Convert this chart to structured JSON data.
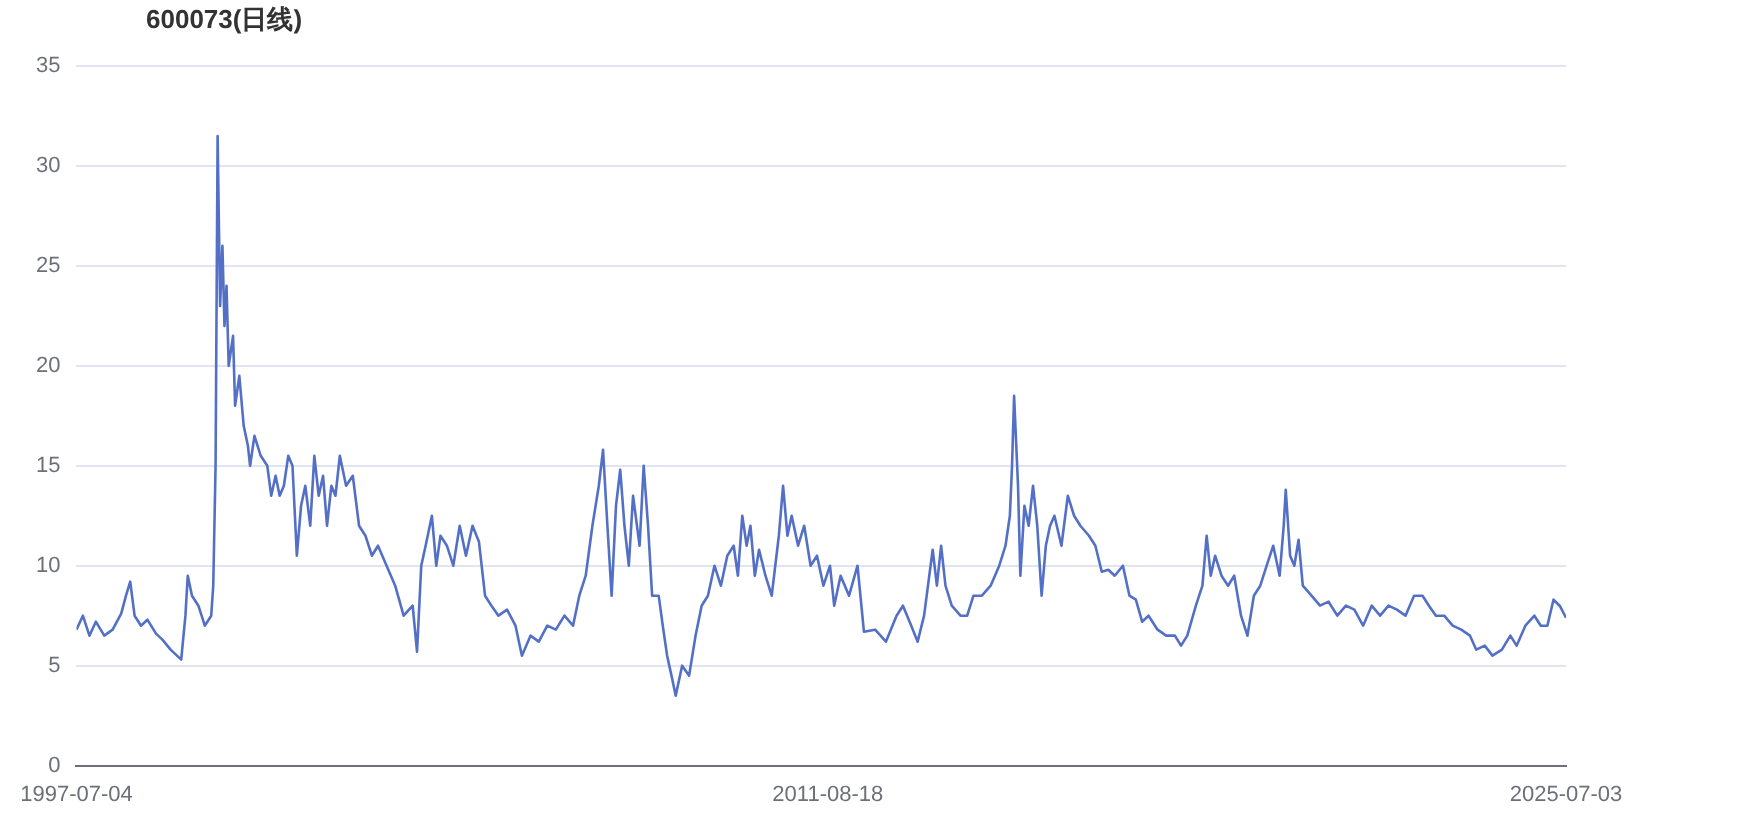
{
  "chart_data": {
    "type": "line",
    "title": "600073(日线)",
    "xlim": [
      "1997-07-04",
      "2025-07-03"
    ],
    "xticks": [
      "1997-07-04",
      "2011-08-18",
      "2025-07-03"
    ],
    "ylim": [
      0,
      35
    ],
    "yticks": [
      0,
      5,
      10,
      15,
      20,
      25,
      30,
      35
    ],
    "grid": "y",
    "legend": false,
    "marker": "none",
    "line_style": "solid",
    "series": [
      {
        "color": "#5470c6",
        "x": [
          "1997-07-04",
          "1997-08-17",
          "1997-10-01",
          "1997-11-14",
          "1998-01-11",
          "1998-03-09",
          "1998-05-07",
          "1998-06-09",
          "1998-07-08",
          "1998-08-07",
          "1998-09-20",
          "1998-11-03",
          "1999-01-01",
          "1999-02-14",
          "1999-04-11",
          "1999-05-25",
          "1999-06-23",
          "1999-07-22",
          "1999-08-07",
          "1999-09-05",
          "1999-10-19",
          "1999-12-02",
          "2000-01-15",
          "2000-01-29",
          "2000-02-14",
          "2000-02-28",
          "2000-03-16",
          "2000-04-01",
          "2000-04-15",
          "2000-04-29",
          "2000-05-14",
          "2000-06-13",
          "2000-06-27",
          "2000-07-26",
          "2000-08-25",
          "2000-09-23",
          "2000-10-08",
          "2000-11-07",
          "2000-12-20",
          "2001-02-03",
          "2001-03-02",
          "2001-04-01",
          "2001-04-29",
          "2001-05-28",
          "2001-06-27",
          "2001-07-26",
          "2001-08-25",
          "2001-09-23",
          "2001-10-22",
          "2001-11-25",
          "2001-12-23",
          "2002-01-22",
          "2002-02-21",
          "2002-03-20",
          "2002-04-19",
          "2002-05-17",
          "2002-06-16",
          "2002-07-29",
          "2002-09-13",
          "2002-10-26",
          "2002-12-09",
          "2003-01-22",
          "2003-03-05",
          "2003-05-03",
          "2003-07-01",
          "2003-08-28",
          "2003-10-29",
          "2003-11-28",
          "2003-12-27",
          "2004-01-26",
          "2004-03-09",
          "2004-04-08",
          "2004-05-07",
          "2004-06-20",
          "2004-08-03",
          "2004-09-16",
          "2004-10-29",
          "2004-12-13",
          "2005-01-26",
          "2005-03-09",
          "2005-04-22",
          "2005-06-09",
          "2005-08-07",
          "2005-10-04",
          "2005-11-17",
          "2006-01-15",
          "2006-03-13",
          "2006-05-10",
          "2006-07-08",
          "2006-09-05",
          "2006-11-03",
          "2006-12-16",
          "2007-01-29",
          "2007-03-16",
          "2007-04-29",
          "2007-05-28",
          "2007-06-27",
          "2007-07-26",
          "2007-08-25",
          "2007-09-23",
          "2007-10-22",
          "2007-11-21",
          "2007-12-20",
          "2008-02-03",
          "2008-03-02",
          "2008-04-01",
          "2008-04-29",
          "2008-06-13",
          "2008-07-11",
          "2008-08-10",
          "2008-09-09",
          "2008-10-08",
          "2008-11-21",
          "2009-01-08",
          "2009-02-21",
          "2009-04-04",
          "2009-05-17",
          "2009-07-01",
          "2009-08-14",
          "2009-09-27",
          "2009-11-10",
          "2009-12-09",
          "2010-01-08",
          "2010-02-07",
          "2010-03-05",
          "2010-04-04",
          "2010-05-03",
          "2010-06-16",
          "2010-07-29",
          "2010-09-16",
          "2010-10-15",
          "2010-11-14",
          "2010-12-13",
          "2011-01-26",
          "2011-03-09",
          "2011-04-22",
          "2011-06-05",
          "2011-07-19",
          "2011-09-02",
          "2011-10-01",
          "2011-11-14",
          "2012-01-11",
          "2012-03-09",
          "2012-04-22",
          "2012-07-08",
          "2012-09-20",
          "2012-12-02",
          "2013-01-15",
          "2013-03-13",
          "2013-04-26",
          "2013-06-09",
          "2013-08-07",
          "2013-09-05",
          "2013-10-04",
          "2013-11-03",
          "2013-12-16",
          "2014-02-14",
          "2014-04-01",
          "2014-05-14",
          "2014-07-11",
          "2014-09-09",
          "2014-11-07",
          "2014-12-20",
          "2015-01-19",
          "2015-02-03",
          "2015-02-17",
          "2015-03-16",
          "2015-04-01",
          "2015-04-29",
          "2015-05-28",
          "2015-06-27",
          "2015-07-26",
          "2015-08-25",
          "2015-09-23",
          "2015-10-22",
          "2015-11-21",
          "2016-01-08",
          "2016-02-21",
          "2016-04-04",
          "2016-05-17",
          "2016-07-15",
          "2016-08-28",
          "2016-10-11",
          "2016-11-25",
          "2017-01-08",
          "2017-03-05",
          "2017-04-19",
          "2017-06-02",
          "2017-07-15",
          "2017-08-28",
          "2017-10-29",
          "2017-12-27",
          "2018-02-25",
          "2018-04-08",
          "2018-05-21",
          "2018-07-19",
          "2018-09-02",
          "2018-10-01",
          "2018-10-29",
          "2018-11-28",
          "2019-01-11",
          "2019-02-25",
          "2019-04-08",
          "2019-05-25",
          "2019-07-08",
          "2019-08-21",
          "2019-10-04",
          "2019-11-17",
          "2020-01-01",
          "2020-02-14",
          "2020-03-13",
          "2020-03-27",
          "2020-04-26",
          "2020-05-25",
          "2020-06-23",
          "2020-07-22",
          "2020-09-20",
          "2020-11-17",
          "2021-01-15",
          "2021-03-16",
          "2021-05-14",
          "2021-07-11",
          "2021-09-09",
          "2021-11-07",
          "2022-01-04",
          "2022-03-02",
          "2022-04-29",
          "2022-06-27",
          "2022-08-25",
          "2022-10-22",
          "2022-12-05",
          "2023-01-22",
          "2023-03-20",
          "2023-05-17",
          "2023-07-15",
          "2023-09-13",
          "2023-10-26",
          "2023-12-23",
          "2024-02-14",
          "2024-04-19",
          "2024-06-16",
          "2024-07-29",
          "2024-09-27",
          "2024-11-28",
          "2025-01-11",
          "2025-02-25",
          "2025-04-08",
          "2025-05-21",
          "2025-07-03"
        ],
        "values": [
          6.8,
          7.5,
          6.5,
          7.2,
          6.5,
          6.8,
          7.6,
          8.5,
          9.2,
          7.5,
          7.0,
          7.3,
          6.6,
          6.3,
          5.8,
          5.5,
          5.3,
          7.5,
          9.5,
          8.5,
          8.0,
          7.0,
          7.5,
          9.0,
          15,
          31.5,
          23,
          26,
          22,
          24,
          20,
          21.5,
          18,
          19.5,
          17,
          16,
          15,
          16.5,
          15.5,
          15,
          13.5,
          14.5,
          13.5,
          14.0,
          15.5,
          15,
          10.5,
          13,
          14,
          12,
          15.5,
          13.5,
          14.5,
          12.0,
          14,
          13.5,
          15.5,
          14,
          14.5,
          12,
          11.5,
          10.5,
          11,
          10,
          9,
          7.5,
          8,
          5.7,
          10,
          11,
          12.5,
          10,
          11.5,
          11,
          10,
          12,
          10.5,
          12,
          11.2,
          8.5,
          8,
          7.5,
          7.8,
          7.0,
          5.5,
          6.5,
          6.2,
          7.0,
          6.8,
          7.5,
          7.0,
          8.5,
          9.5,
          12,
          14,
          15.8,
          12,
          8.5,
          13,
          14.8,
          12,
          10,
          13.5,
          11,
          15,
          12,
          8.5,
          8.5,
          7.0,
          5.5,
          4.5,
          3.5,
          5,
          4.5,
          6.5,
          8.0,
          8.5,
          10,
          9.0,
          10.5,
          11,
          9.5,
          12.5,
          11,
          12,
          9.5,
          10.8,
          9.5,
          8.5,
          11.5,
          14.0,
          11.5,
          12.5,
          11,
          12.0,
          10,
          10.5,
          9,
          10,
          8,
          9.5,
          8.5,
          10,
          6.7,
          6.8,
          6.2,
          7.5,
          8,
          7,
          6.2,
          7.5,
          10.8,
          9,
          11,
          9,
          8,
          7.5,
          7.5,
          8.5,
          8.5,
          9.0,
          10,
          11,
          12.5,
          15,
          18.5,
          14,
          9.5,
          13,
          12,
          14,
          12,
          8.5,
          11,
          12,
          12.5,
          11,
          13.5,
          12.5,
          12,
          11.5,
          11,
          9.7,
          9.8,
          9.5,
          10.0,
          8.5,
          8.3,
          7.2,
          7.5,
          6.8,
          6.5,
          6.5,
          6.0,
          6.5,
          8,
          9,
          11.5,
          9.5,
          10.5,
          9.5,
          9.0,
          9.5,
          7.5,
          6.5,
          8.5,
          9,
          10,
          11,
          9.5,
          12,
          13.8,
          10.5,
          10,
          11.3,
          9,
          8.5,
          8,
          8.2,
          7.5,
          8,
          7.8,
          7.0,
          8,
          7.5,
          8,
          7.8,
          7.5,
          8.5,
          8.5,
          8.0,
          7.5,
          7.5,
          7,
          6.8,
          6.5,
          5.8,
          6.0,
          5.5,
          5.8,
          6.5,
          6.0,
          7.0,
          7.5,
          7.0,
          7.0,
          8.3,
          8.0,
          7.4
        ]
      }
    ]
  }
}
